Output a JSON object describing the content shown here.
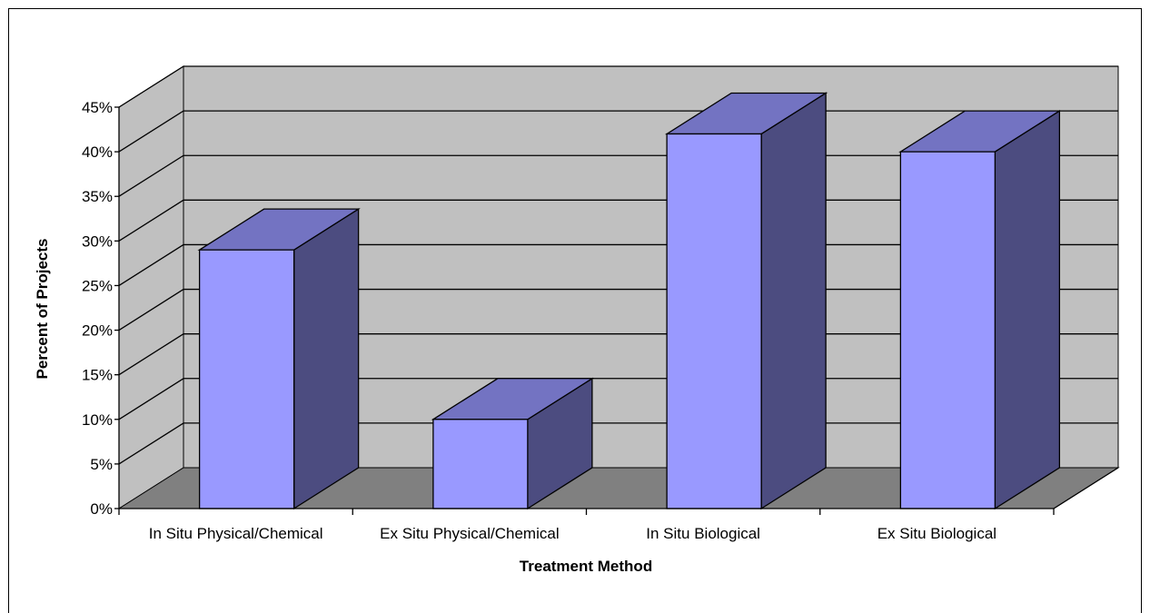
{
  "chart_data": {
    "type": "bar",
    "categories": [
      "In Situ Physical/Chemical",
      "Ex Situ Physical/Chemical",
      "In Situ Biological",
      "Ex Situ Biological"
    ],
    "values": [
      29,
      10,
      42,
      40
    ],
    "value_unit": "%",
    "xlabel": "Treatment Method",
    "ylabel": "Percent of Projects",
    "ylim": [
      0,
      45
    ],
    "yticks": [
      "0%",
      "5%",
      "10%",
      "15%",
      "20%",
      "25%",
      "30%",
      "35%",
      "40%",
      "45%"
    ],
    "grid": true,
    "three_d": true,
    "legend": "none",
    "colors": {
      "bar_front": "#9999FF",
      "bar_top": "#7373C2",
      "bar_side": "#4C4C80",
      "back_wall": "#C0C0C0",
      "floor": "#808080",
      "grid": "#000000"
    }
  }
}
